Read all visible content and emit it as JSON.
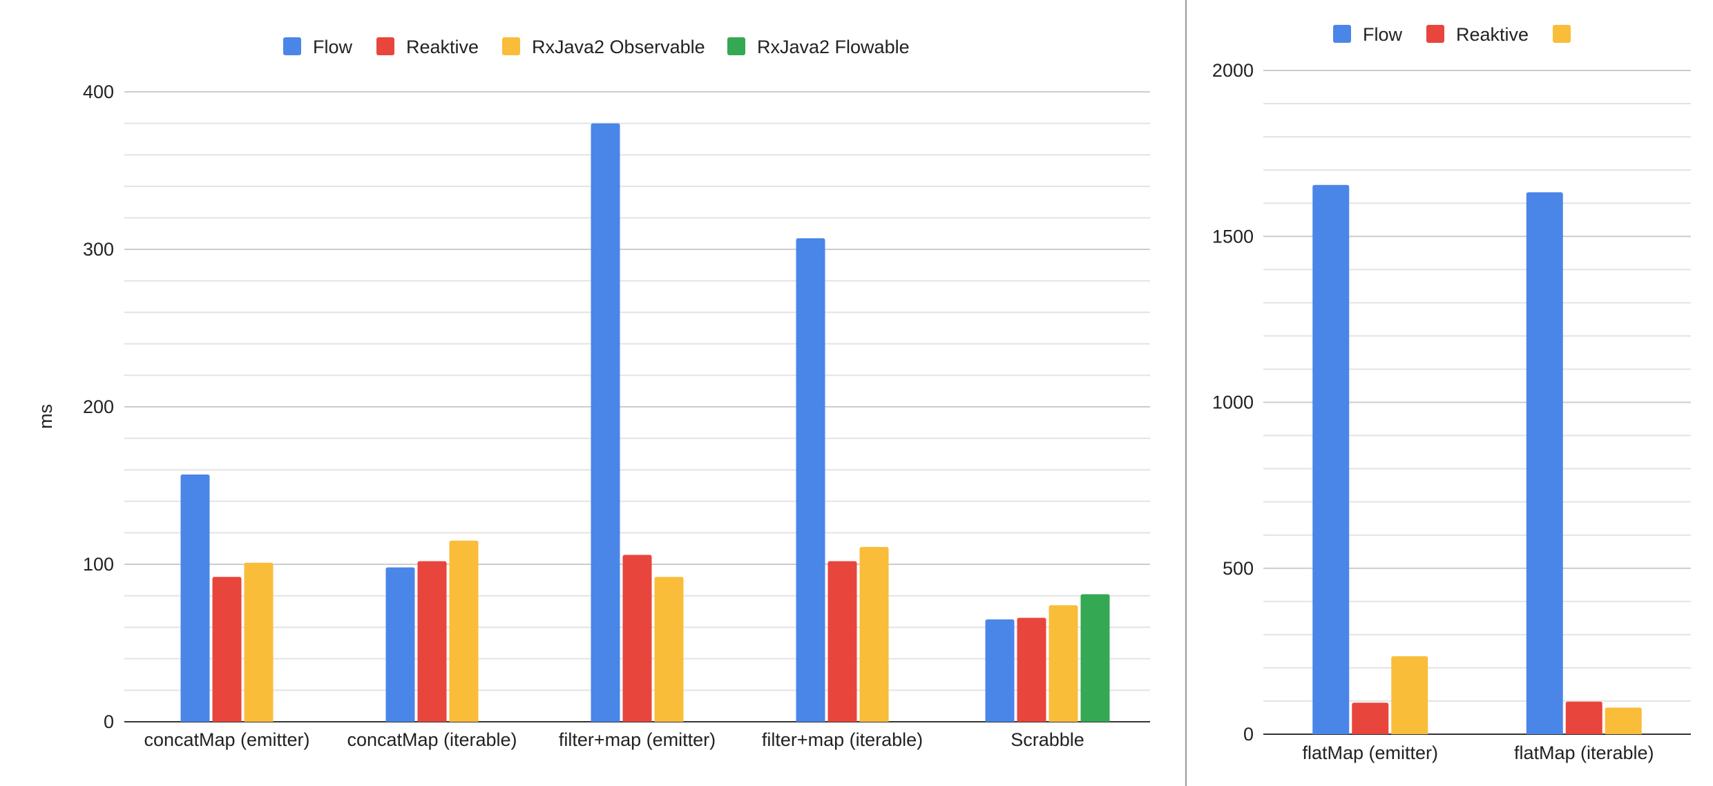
{
  "colors": {
    "flow": "#4a86e8",
    "reaktive": "#e8453c",
    "observable": "#f9bd3a",
    "flowable": "#34a853",
    "grid": "#cccccc",
    "minor_grid": "#e3e3e3",
    "axis": "#333333",
    "divider": "#999999"
  },
  "chart_data": [
    {
      "type": "bar",
      "title": "",
      "xlabel": "",
      "ylabel": "ms",
      "ylim": [
        0,
        400
      ],
      "yticks": [
        "0",
        "100",
        "200",
        "300",
        "400"
      ],
      "legend": [
        "Flow",
        "Reaktive",
        "RxJava2 Observable",
        "RxJava2 Flowable"
      ],
      "legend_position": "top",
      "categories": [
        "concatMap (emitter)",
        "concatMap (iterable)",
        "filter+map (emitter)",
        "filter+map (iterable)",
        "Scrabble"
      ],
      "series": [
        {
          "name": "Flow",
          "values": [
            157,
            98,
            380,
            307,
            65
          ]
        },
        {
          "name": "Reaktive",
          "values": [
            92,
            102,
            106,
            102,
            66
          ]
        },
        {
          "name": "RxJava2 Observable",
          "values": [
            101,
            115,
            92,
            111,
            74
          ]
        },
        {
          "name": "RxJava2 Flowable",
          "values": [
            null,
            null,
            null,
            null,
            81
          ]
        }
      ]
    },
    {
      "type": "bar",
      "title": "",
      "xlabel": "",
      "ylabel": "",
      "ylim": [
        0,
        2000
      ],
      "yticks": [
        "0",
        "500",
        "1000",
        "1500",
        "2000"
      ],
      "legend": [
        "Flow",
        "Reaktive",
        ""
      ],
      "legend_position": "top",
      "categories": [
        "flatMap (emitter)",
        "flatMap (iterable)"
      ],
      "series": [
        {
          "name": "Flow",
          "values": [
            1655,
            1633
          ]
        },
        {
          "name": "Reaktive",
          "values": [
            95,
            98
          ]
        },
        {
          "name": "RxJava2 Observable",
          "values": [
            235,
            80
          ]
        }
      ]
    }
  ]
}
